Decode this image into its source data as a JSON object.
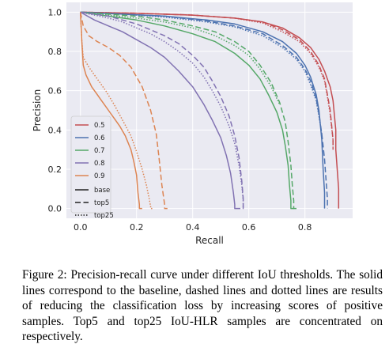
{
  "figure": {
    "chart_data": {
      "type": "line",
      "title": "",
      "xlabel": "Recall",
      "ylabel": "Precision",
      "xlim": [
        -0.05,
        0.97
      ],
      "ylim": [
        -0.05,
        1.05
      ],
      "xticks": [
        "0.0",
        "0.2",
        "0.4",
        "0.6",
        "0.8"
      ],
      "xtick_values": [
        0.0,
        0.2,
        0.4,
        0.6,
        0.8
      ],
      "yticks": [
        "0.0",
        "0.2",
        "0.4",
        "0.6",
        "0.8",
        "1.0"
      ],
      "ytick_values": [
        0.0,
        0.2,
        0.4,
        0.6,
        0.8,
        1.0
      ],
      "grid": true,
      "background": "#eaeaf2",
      "legend_position": "lower-left",
      "legend_colors": [
        {
          "label": "0.5",
          "color": "#c44e52"
        },
        {
          "label": "0.6",
          "color": "#4c72b0"
        },
        {
          "label": "0.7",
          "color": "#55a868"
        },
        {
          "label": "0.8",
          "color": "#8172b2"
        },
        {
          "label": "0.9",
          "color": "#dd8452"
        }
      ],
      "legend_styles": [
        {
          "label": "base",
          "style": "solid"
        },
        {
          "label": "top5",
          "style": "dashed"
        },
        {
          "label": "top25",
          "style": "dotted"
        }
      ],
      "series": [
        {
          "iou": "0.5",
          "style": "solid",
          "color": "#c44e52",
          "x": [
            0.0,
            0.2,
            0.4,
            0.55,
            0.65,
            0.72,
            0.78,
            0.82,
            0.85,
            0.87,
            0.89,
            0.9,
            0.91,
            0.91,
            0.92,
            0.92
          ],
          "y": [
            1.0,
            0.995,
            0.985,
            0.97,
            0.95,
            0.92,
            0.87,
            0.82,
            0.76,
            0.7,
            0.62,
            0.55,
            0.4,
            0.3,
            0.1,
            0.0
          ]
        },
        {
          "iou": "0.5",
          "style": "dashed",
          "color": "#c44e52",
          "x": [
            0.0,
            0.2,
            0.4,
            0.55,
            0.65,
            0.72,
            0.78,
            0.82,
            0.85,
            0.87,
            0.88,
            0.89,
            0.9,
            0.9
          ],
          "y": [
            1.0,
            0.995,
            0.985,
            0.97,
            0.95,
            0.91,
            0.86,
            0.8,
            0.73,
            0.66,
            0.58,
            0.5,
            0.35,
            0.3
          ]
        },
        {
          "iou": "0.5",
          "style": "dotted",
          "color": "#c44e52",
          "x": [
            0.0,
            0.2,
            0.4,
            0.55,
            0.65,
            0.72,
            0.78,
            0.82,
            0.85,
            0.87,
            0.88,
            0.89,
            0.9,
            0.9
          ],
          "y": [
            1.0,
            0.995,
            0.985,
            0.97,
            0.945,
            0.9,
            0.85,
            0.79,
            0.72,
            0.65,
            0.57,
            0.48,
            0.35,
            0.3
          ]
        },
        {
          "iou": "0.6",
          "style": "solid",
          "color": "#4c72b0",
          "x": [
            0.0,
            0.15,
            0.3,
            0.45,
            0.55,
            0.65,
            0.72,
            0.77,
            0.8,
            0.82,
            0.84,
            0.85,
            0.86,
            0.865,
            0.87,
            0.87
          ],
          "y": [
            1.0,
            0.99,
            0.98,
            0.96,
            0.94,
            0.9,
            0.85,
            0.79,
            0.73,
            0.67,
            0.58,
            0.5,
            0.35,
            0.2,
            0.08,
            0.0
          ]
        },
        {
          "iou": "0.6",
          "style": "dashed",
          "color": "#4c72b0",
          "x": [
            0.0,
            0.15,
            0.3,
            0.45,
            0.55,
            0.65,
            0.72,
            0.77,
            0.8,
            0.82,
            0.84,
            0.85,
            0.86,
            0.87,
            0.875,
            0.88,
            0.88
          ],
          "y": [
            1.0,
            0.99,
            0.98,
            0.955,
            0.93,
            0.89,
            0.83,
            0.77,
            0.71,
            0.65,
            0.56,
            0.48,
            0.38,
            0.25,
            0.15,
            0.05,
            0.0
          ]
        },
        {
          "iou": "0.6",
          "style": "dotted",
          "color": "#4c72b0",
          "x": [
            0.0,
            0.15,
            0.3,
            0.45,
            0.55,
            0.65,
            0.72,
            0.77,
            0.8,
            0.82,
            0.84,
            0.85,
            0.86
          ],
          "y": [
            1.0,
            0.99,
            0.975,
            0.95,
            0.925,
            0.88,
            0.82,
            0.76,
            0.7,
            0.63,
            0.55,
            0.47,
            0.38
          ]
        },
        {
          "iou": "0.7",
          "style": "solid",
          "color": "#55a868",
          "x": [
            0.0,
            0.1,
            0.2,
            0.3,
            0.4,
            0.48,
            0.55,
            0.6,
            0.64,
            0.67,
            0.7,
            0.72,
            0.73,
            0.74,
            0.745,
            0.75,
            0.75,
            0.76
          ],
          "y": [
            1.0,
            0.98,
            0.96,
            0.93,
            0.89,
            0.85,
            0.79,
            0.73,
            0.66,
            0.58,
            0.49,
            0.4,
            0.32,
            0.22,
            0.12,
            0.04,
            0.0,
            0.0
          ]
        },
        {
          "iou": "0.7",
          "style": "dashed",
          "color": "#55a868",
          "x": [
            0.0,
            0.1,
            0.2,
            0.3,
            0.4,
            0.48,
            0.55,
            0.6,
            0.64,
            0.68,
            0.71,
            0.73,
            0.74,
            0.75,
            0.755,
            0.76,
            0.76,
            0.77
          ],
          "y": [
            1.0,
            0.99,
            0.98,
            0.96,
            0.93,
            0.9,
            0.85,
            0.8,
            0.73,
            0.64,
            0.54,
            0.44,
            0.34,
            0.22,
            0.12,
            0.04,
            0.0,
            0.0
          ]
        },
        {
          "iou": "0.7",
          "style": "dotted",
          "color": "#55a868",
          "x": [
            0.0,
            0.1,
            0.2,
            0.3,
            0.4,
            0.48,
            0.55,
            0.6,
            0.64,
            0.68,
            0.71
          ],
          "y": [
            1.0,
            0.985,
            0.97,
            0.95,
            0.92,
            0.88,
            0.83,
            0.78,
            0.71,
            0.62,
            0.53
          ]
        },
        {
          "iou": "0.8",
          "style": "solid",
          "color": "#8172b2",
          "x": [
            0.0,
            0.05,
            0.1,
            0.15,
            0.2,
            0.25,
            0.3,
            0.35,
            0.4,
            0.44,
            0.47,
            0.5,
            0.52,
            0.535,
            0.545,
            0.55,
            0.55,
            0.57
          ],
          "y": [
            1.0,
            0.96,
            0.93,
            0.9,
            0.86,
            0.82,
            0.77,
            0.7,
            0.62,
            0.53,
            0.45,
            0.36,
            0.27,
            0.18,
            0.08,
            0.02,
            0.0,
            0.0
          ]
        },
        {
          "iou": "0.8",
          "style": "dashed",
          "color": "#8172b2",
          "x": [
            0.0,
            0.05,
            0.1,
            0.15,
            0.2,
            0.25,
            0.3,
            0.35,
            0.4,
            0.44,
            0.47,
            0.5,
            0.53,
            0.55,
            0.565,
            0.575,
            0.58,
            0.58,
            0.59
          ],
          "y": [
            1.0,
            0.99,
            0.98,
            0.96,
            0.94,
            0.91,
            0.88,
            0.84,
            0.78,
            0.72,
            0.65,
            0.57,
            0.47,
            0.37,
            0.26,
            0.14,
            0.05,
            0.0,
            0.0
          ]
        },
        {
          "iou": "0.8",
          "style": "dotted",
          "color": "#8172b2",
          "x": [
            0.0,
            0.05,
            0.1,
            0.15,
            0.2,
            0.25,
            0.3,
            0.35,
            0.4,
            0.44,
            0.47,
            0.5,
            0.53,
            0.55,
            0.565,
            0.575,
            0.58,
            0.58
          ],
          "y": [
            1.0,
            0.985,
            0.97,
            0.95,
            0.92,
            0.89,
            0.85,
            0.8,
            0.74,
            0.67,
            0.6,
            0.52,
            0.42,
            0.33,
            0.22,
            0.12,
            0.04,
            0.0
          ]
        },
        {
          "iou": "0.9",
          "style": "solid",
          "color": "#dd8452",
          "x": [
            0.0,
            0.005,
            0.01,
            0.02,
            0.04,
            0.06,
            0.08,
            0.1,
            0.12,
            0.14,
            0.16,
            0.18,
            0.19,
            0.2,
            0.205,
            0.21,
            0.21,
            0.22
          ],
          "y": [
            1.0,
            0.85,
            0.73,
            0.68,
            0.62,
            0.58,
            0.54,
            0.5,
            0.46,
            0.42,
            0.37,
            0.3,
            0.24,
            0.17,
            0.08,
            0.02,
            0.0,
            0.0
          ]
        },
        {
          "iou": "0.9",
          "style": "dashed",
          "color": "#dd8452",
          "x": [
            0.0,
            0.01,
            0.03,
            0.06,
            0.1,
            0.14,
            0.18,
            0.22,
            0.25,
            0.27,
            0.28,
            0.29,
            0.3,
            0.3,
            0.31
          ],
          "y": [
            1.0,
            0.93,
            0.88,
            0.85,
            0.82,
            0.78,
            0.72,
            0.62,
            0.5,
            0.38,
            0.26,
            0.12,
            0.02,
            0.0,
            0.0
          ]
        },
        {
          "iou": "0.9",
          "style": "dotted",
          "color": "#dd8452",
          "x": [
            0.0,
            0.005,
            0.01,
            0.03,
            0.06,
            0.09,
            0.12,
            0.15,
            0.18,
            0.2,
            0.22,
            0.235,
            0.245,
            0.25,
            0.25,
            0.26
          ],
          "y": [
            1.0,
            0.85,
            0.77,
            0.72,
            0.66,
            0.6,
            0.53,
            0.45,
            0.37,
            0.29,
            0.2,
            0.12,
            0.05,
            0.01,
            0.0,
            0.0
          ]
        }
      ]
    }
  },
  "caption": {
    "label": "Figure 2:",
    "text": "Precision-recall curve under different IoU thresholds. The solid lines correspond to the baseline, dashed lines and dotted lines are results of reducing the classification loss by increasing scores of positive samples. Top5 and top25 IoU-HLR samples are concentrated on respectively."
  }
}
